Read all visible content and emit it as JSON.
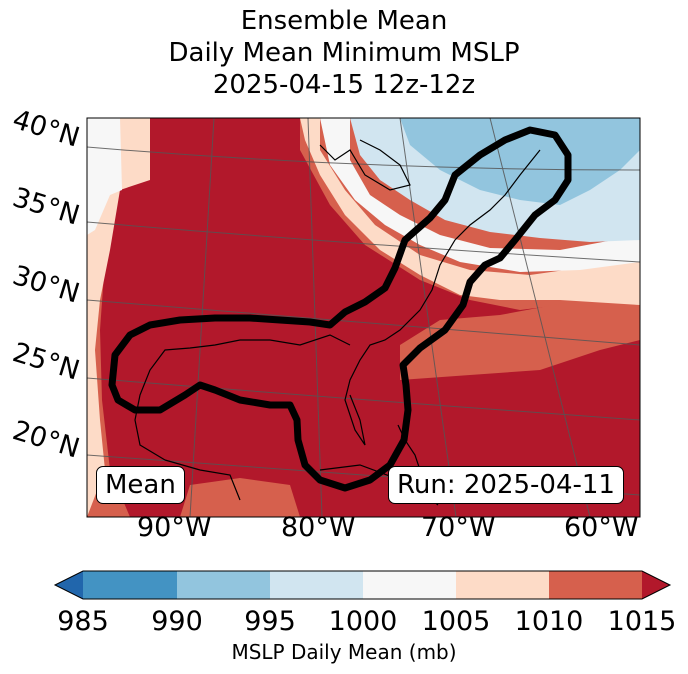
{
  "title": {
    "line1": "Ensemble Mean",
    "line2": "Daily Mean Minimum MSLP",
    "line3": "2025-04-15 12z-12z"
  },
  "map": {
    "lat_labels": [
      "40°N",
      "35°N",
      "30°N",
      "25°N",
      "20°N"
    ],
    "lon_labels": [
      "90°W",
      "80°W",
      "70°W",
      "60°W"
    ],
    "left_box": "Mean",
    "right_box": "Run: 2025-04-11",
    "contour_color": "#000000"
  },
  "colorbar": {
    "label": "MSLP Daily Mean (mb)",
    "ticks": [
      "985",
      "990",
      "995",
      "1000",
      "1005",
      "1010",
      "1015"
    ],
    "colors": {
      "under": "#2166ac",
      "c985_990": "#4393c3",
      "c990_995": "#92c5de",
      "c995_1000": "#d1e5f0",
      "c1000_1005": "#f7f7f7",
      "c1005_1010": "#fddbc7",
      "c1010_1015": "#d6604d",
      "over": "#b2182b"
    }
  }
}
